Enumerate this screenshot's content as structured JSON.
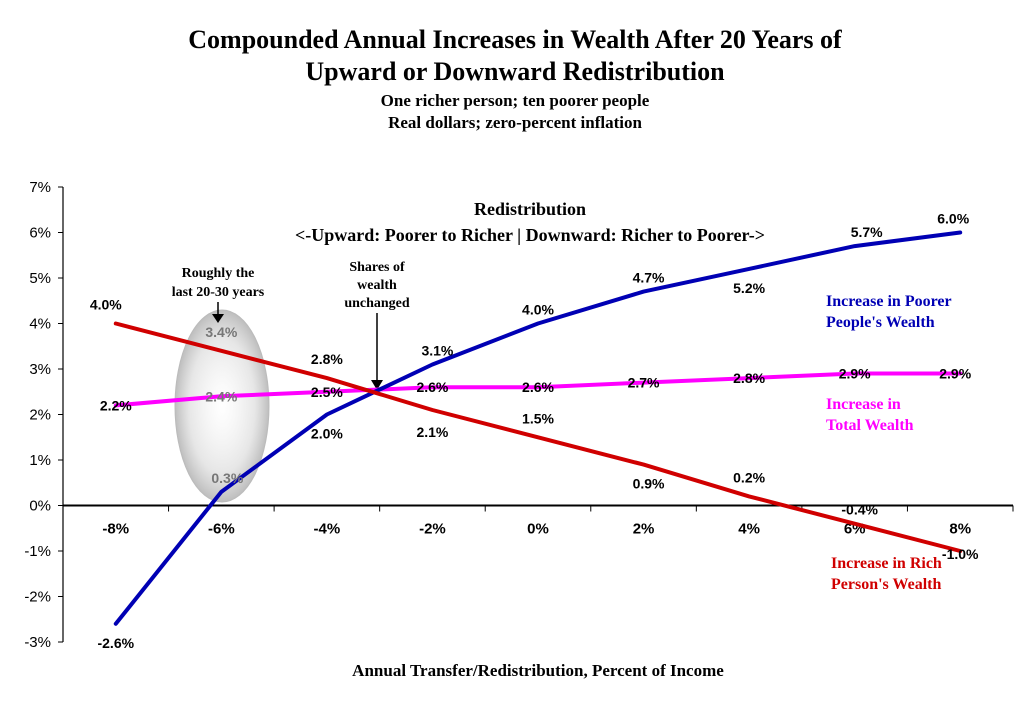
{
  "chart_data": {
    "type": "line",
    "title_line1": "Compounded Annual Increases in Wealth After 20 Years of",
    "title_line2": "Upward or Downward Redistribution",
    "subtitle_line1": "One richer person; ten poorer people",
    "subtitle_line2": "Real dollars; zero-percent inflation",
    "xlabel": "Annual Transfer/Redistribution, Percent of Income",
    "ylabel": "",
    "x": [
      -8,
      -6,
      -4,
      -2,
      0,
      2,
      4,
      6,
      8
    ],
    "x_tick_labels": [
      "-8%",
      "-6%",
      "-4%",
      "-2%",
      "0%",
      "2%",
      "4%",
      "6%",
      "8%"
    ],
    "ylim": [
      -3,
      7
    ],
    "y_tick_labels": [
      "7%",
      "6%",
      "5%",
      "4%",
      "3%",
      "2%",
      "1%",
      "0%",
      "-1%",
      "-2%",
      "-3%"
    ],
    "grid": false,
    "series": [
      {
        "name": "Increase in Poorer People's Wealth",
        "name_line1": "Increase in Poorer",
        "name_line2": "People's Wealth",
        "color": "#0000b4",
        "values": [
          -2.6,
          0.3,
          2.0,
          3.1,
          4.0,
          4.7,
          5.2,
          5.7,
          6.0
        ],
        "labels": [
          "-2.6%",
          "0.3%",
          "2.0%",
          "3.1%",
          "4.0%",
          "4.7%",
          "5.2%",
          "5.7%",
          "6.0%"
        ]
      },
      {
        "name": "Increase in Total Wealth",
        "name_line1": "Increase in",
        "name_line2": "Total Wealth",
        "color": "#ff00ff",
        "values": [
          2.2,
          2.4,
          2.5,
          2.6,
          2.6,
          2.7,
          2.8,
          2.9,
          2.9
        ],
        "labels": [
          "2.2%",
          "2.4%",
          "2.5%",
          "2.6%",
          "2.6%",
          "2.7%",
          "2.8%",
          "2.9%",
          "2.9%"
        ]
      },
      {
        "name": "Increase in Rich Person's Wealth",
        "name_line1": "Increase in Rich",
        "name_line2": "Person's Wealth",
        "color": "#d00000",
        "values": [
          4.0,
          3.4,
          2.8,
          2.1,
          1.5,
          0.9,
          0.2,
          -0.4,
          -1.0
        ],
        "labels": [
          "4.0%",
          "3.4%",
          "2.8%",
          "2.1%",
          "1.5%",
          "0.9%",
          "0.2%",
          "-0.4%",
          "-1.0%"
        ]
      }
    ],
    "annotations": {
      "redistribution_title": "Redistribution",
      "redistribution_sub": "<-Upward: Poorer to Richer | Downward: Richer to Poorer->",
      "roughly_line1": "Roughly the",
      "roughly_line2": "last 20-30 years",
      "shares_line1": "Shares of",
      "shares_line2": "wealth",
      "shares_line3": "unchanged"
    }
  }
}
